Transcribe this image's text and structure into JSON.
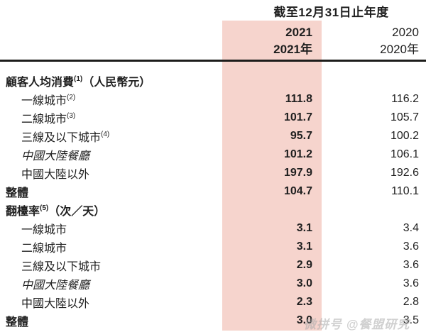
{
  "header": {
    "period_title": "截至12月31日止年度",
    "columns": [
      {
        "line1": "2021",
        "line2": "2021年"
      },
      {
        "line1": "2020",
        "line2": "2020年"
      }
    ]
  },
  "rows": [
    {
      "label": "顧客人均消費",
      "sup": "(1)",
      "suffix": "（人民幣元）",
      "v2021": "",
      "v2020": ""
    },
    {
      "label": "一線城市",
      "sup": "(2)",
      "v2021": "111.8",
      "v2020": "116.2"
    },
    {
      "label": "二線城市",
      "sup": "(3)",
      "v2021": "101.7",
      "v2020": "105.7"
    },
    {
      "label": "三線及以下城市",
      "sup": "(4)",
      "v2021": "95.7",
      "v2020": "100.2"
    },
    {
      "label": "中國大陸餐廳",
      "v2021": "101.2",
      "v2020": "106.1"
    },
    {
      "label": "中國大陸以外",
      "v2021": "197.9",
      "v2020": "192.6"
    },
    {
      "label": "整體",
      "v2021": "104.7",
      "v2020": "110.1"
    },
    {
      "label": "翻檯率",
      "sup": "(5)",
      "suffix": "（次／天）",
      "v2021": "",
      "v2020": ""
    },
    {
      "label": "一線城市",
      "v2021": "3.1",
      "v2020": "3.4"
    },
    {
      "label": "二線城市",
      "v2021": "3.1",
      "v2020": "3.6"
    },
    {
      "label": "三線及以下城市",
      "v2021": "2.9",
      "v2020": "3.6"
    },
    {
      "label": "中國大陸餐廳",
      "v2021": "3.0",
      "v2020": "3.6"
    },
    {
      "label": "中國大陸以外",
      "v2021": "2.3",
      "v2020": "2.8"
    },
    {
      "label": "整體",
      "v2021": "3.0",
      "v2020": "3.5"
    }
  ],
  "watermark": {
    "text": "微拼号 @餐盟研究"
  },
  "colors": {
    "highlight": "#f6d4cd",
    "text": "#1f1f1f",
    "rule": "#1d1d1b",
    "watermark_gray": "#ababab"
  }
}
